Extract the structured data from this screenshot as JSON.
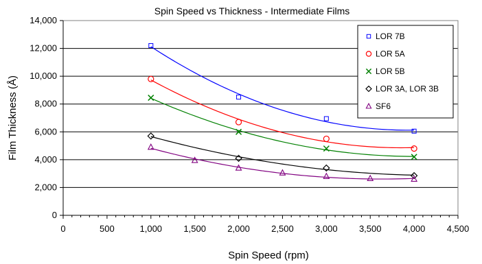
{
  "chart_data": {
    "type": "scatter",
    "title": "Spin Speed vs Thickness - Intermediate Films",
    "xlabel": "Spin Speed (rpm)",
    "ylabel": "Film Thickness (Å)",
    "xlim": [
      0,
      4500
    ],
    "ylim": [
      0,
      14000
    ],
    "x_ticks": [
      0,
      500,
      1000,
      1500,
      2000,
      2500,
      3000,
      3500,
      4000,
      4500
    ],
    "x_tick_labels": [
      "0",
      "500",
      "1,000",
      "1,500",
      "2,000",
      "2,500",
      "3,000",
      "3,500",
      "4,000",
      "4,500"
    ],
    "y_ticks": [
      0,
      2000,
      4000,
      6000,
      8000,
      10000,
      12000,
      14000
    ],
    "y_tick_labels": [
      "0",
      "2,000",
      "4,000",
      "6,000",
      "8,000",
      "10,000",
      "12,000",
      "14,000"
    ],
    "grid": "horizontal",
    "legend_position": "top-right",
    "trendline": "smooth fit per series",
    "series": [
      {
        "name": "LOR 7B",
        "marker": "square",
        "color": "#0000FF",
        "x": [
          1000,
          2000,
          3000,
          4000
        ],
        "y": [
          12200,
          8500,
          6950,
          6050
        ]
      },
      {
        "name": "LOR 5A",
        "marker": "circle",
        "color": "#FF0000",
        "x": [
          1000,
          2000,
          3000,
          4000
        ],
        "y": [
          9800,
          6700,
          5500,
          4800
        ]
      },
      {
        "name": "LOR 5B",
        "marker": "x",
        "color": "#008000",
        "x": [
          1000,
          2000,
          3000,
          4000
        ],
        "y": [
          8450,
          6000,
          4800,
          4200
        ]
      },
      {
        "name": "LOR 3A, LOR 3B",
        "marker": "diamond",
        "color": "#000000",
        "x": [
          1000,
          2000,
          3000,
          4000
        ],
        "y": [
          5700,
          4100,
          3400,
          2850
        ]
      },
      {
        "name": "SF6",
        "marker": "triangle",
        "color": "#800080",
        "x": [
          1000,
          1500,
          2000,
          2500,
          3000,
          3500,
          4000
        ],
        "y": [
          4900,
          3950,
          3400,
          3050,
          2800,
          2650,
          2600
        ]
      }
    ]
  }
}
